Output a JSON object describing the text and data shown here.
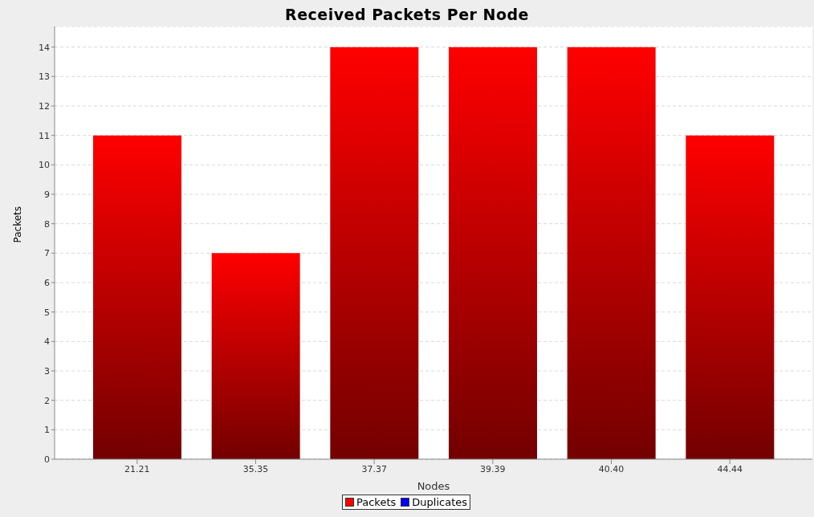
{
  "chart_data": {
    "type": "bar",
    "title": "Received Packets Per Node",
    "xlabel": "Nodes",
    "ylabel": "Packets",
    "categories": [
      "21.21",
      "35.35",
      "37.37",
      "39.39",
      "40.40",
      "44.44"
    ],
    "series": [
      {
        "name": "Packets",
        "color": "#ff0000",
        "values": [
          11,
          7,
          14,
          14,
          14,
          11
        ]
      },
      {
        "name": "Duplicates",
        "color": "#0000ff",
        "values": [
          0,
          0,
          0,
          0,
          0,
          0
        ]
      }
    ],
    "ylim": [
      0,
      14.7
    ],
    "yticks": [
      0,
      1,
      2,
      3,
      4,
      5,
      6,
      7,
      8,
      9,
      10,
      11,
      12,
      13,
      14
    ],
    "grid": "y",
    "legend": "bottom"
  }
}
